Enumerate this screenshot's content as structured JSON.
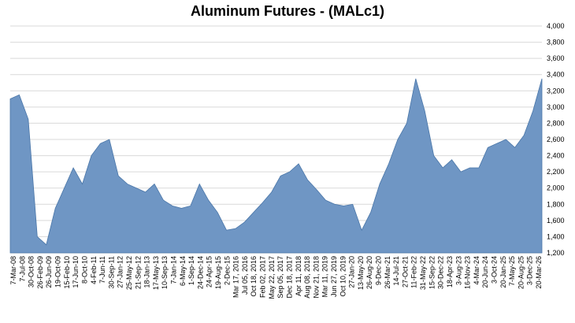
{
  "chart_data": {
    "type": "area",
    "title": "Aluminum Futures - (MALc1)",
    "xlabel": "",
    "ylabel": "",
    "ylim": [
      1200,
      4000
    ],
    "yticks": [
      1200,
      1400,
      1600,
      1800,
      2000,
      2200,
      2400,
      2600,
      2800,
      3000,
      3200,
      3400,
      3600,
      3800,
      4000
    ],
    "ytick_labels": [
      "1,200",
      "1,400",
      "1,600",
      "1,800",
      "2,000",
      "2,200",
      "2,400",
      "2,600",
      "2,800",
      "3,000",
      "3,200",
      "3,400",
      "3,600",
      "3,800",
      "4,000"
    ],
    "y_axis_side": "right",
    "grid": true,
    "legend": "none",
    "fill_color": "#6f96c4",
    "line_color": "#4a76a8",
    "grid_color": "#d9d9d9",
    "xtick_labels": [
      "7-Mar-08",
      "7-Jul-08",
      "30-Oct-08",
      "26-Feb-09",
      "26-Jun-09",
      "19-Oct-09",
      "15-Feb-10",
      "17-Jun-10",
      "8-Oct-10",
      "4-Feb-11",
      "7-Jun-11",
      "30-Sep-11",
      "27-Jan-12",
      "25-May-12",
      "21-Sep-12",
      "18-Jan-13",
      "17-May-13",
      "10-Sep-13",
      "7-Jan-14",
      "6-May-14",
      "1-Sep-14",
      "24-Dec-14",
      "24-Apr-15",
      "19-Aug-15",
      "2-Dec-15",
      "Mar 17, 2016",
      "Jul 05, 2016",
      "Oct 18, 2016",
      "Feb 02, 2017",
      "May 22, 2017",
      "Sep 05, 2017",
      "Dec 18, 2017",
      "Apr 11, 2018",
      "Aug 08, 2018",
      "Nov 21, 2018",
      "Mar 11, 2019",
      "Jun 27, 2019",
      "Oct 10, 2019",
      "27-Jan-20",
      "13-May-20",
      "26-Aug-20",
      "9-Dec-20",
      "26-Mar-21",
      "14-Jul-21",
      "27-Oct-21",
      "11-Feb-22",
      "31-May-22",
      "15-Sep-22",
      "30-Dec-22",
      "18-Apr-23",
      "3-Aug-23",
      "16-Nov-23",
      "4-Mar-24",
      "20-Jun-24",
      "3-Oct-24",
      "20-Jan-25",
      "7-May-25",
      "20-Aug-25",
      "3-Dec-25",
      "20-Mar-26"
    ],
    "x": [
      "7-Mar-08",
      "7-Jul-08",
      "30-Oct-08",
      "26-Feb-09",
      "26-Jun-09",
      "19-Oct-09",
      "15-Feb-10",
      "17-Jun-10",
      "8-Oct-10",
      "4-Feb-11",
      "7-Jun-11",
      "30-Sep-11",
      "27-Jan-12",
      "25-May-12",
      "21-Sep-12",
      "18-Jan-13",
      "17-May-13",
      "10-Sep-13",
      "7-Jan-14",
      "6-May-14",
      "1-Sep-14",
      "24-Dec-14",
      "24-Apr-15",
      "19-Aug-15",
      "2-Dec-15",
      "Mar 17, 2016",
      "Jul 05, 2016",
      "Oct 18, 2016",
      "Feb 02, 2017",
      "May 22, 2017",
      "Sep 05, 2017",
      "Dec 18, 2017",
      "Apr 11, 2018",
      "Aug 08, 2018",
      "Nov 21, 2018",
      "Mar 11, 2019",
      "Jun 27, 2019",
      "Oct 10, 2019",
      "27-Jan-20",
      "13-May-20",
      "26-Aug-20",
      "9-Dec-20",
      "26-Mar-21",
      "14-Jul-21",
      "27-Oct-21",
      "11-Feb-22",
      "31-May-22",
      "15-Sep-22",
      "30-Dec-22",
      "18-Apr-23",
      "3-Aug-23",
      "16-Nov-23",
      "4-Mar-24",
      "20-Jun-24",
      "3-Oct-24",
      "20-Jan-25",
      "7-May-25",
      "20-Aug-25",
      "3-Dec-25",
      "20-Mar-26"
    ],
    "series": [
      {
        "values": [
          3100,
          3150,
          2850,
          1400,
          1300,
          1750,
          2000,
          2250,
          2050,
          2400,
          2550,
          2600,
          2150,
          2050,
          2000,
          1950,
          2050,
          1850,
          1780,
          1750,
          1780,
          2050,
          1850,
          1700,
          1480,
          1500,
          1580,
          1700,
          1820,
          1950,
          2150,
          2200,
          2300,
          2100,
          1980,
          1850,
          1800,
          1780,
          1800,
          1480,
          1700,
          2050,
          2300,
          2600,
          2800,
          3350,
          2950,
          2400,
          2250,
          2350,
          2200,
          2250,
          2250,
          2500,
          2550,
          2600,
          2500,
          2650,
          2950,
          3350
        ]
      }
    ]
  }
}
